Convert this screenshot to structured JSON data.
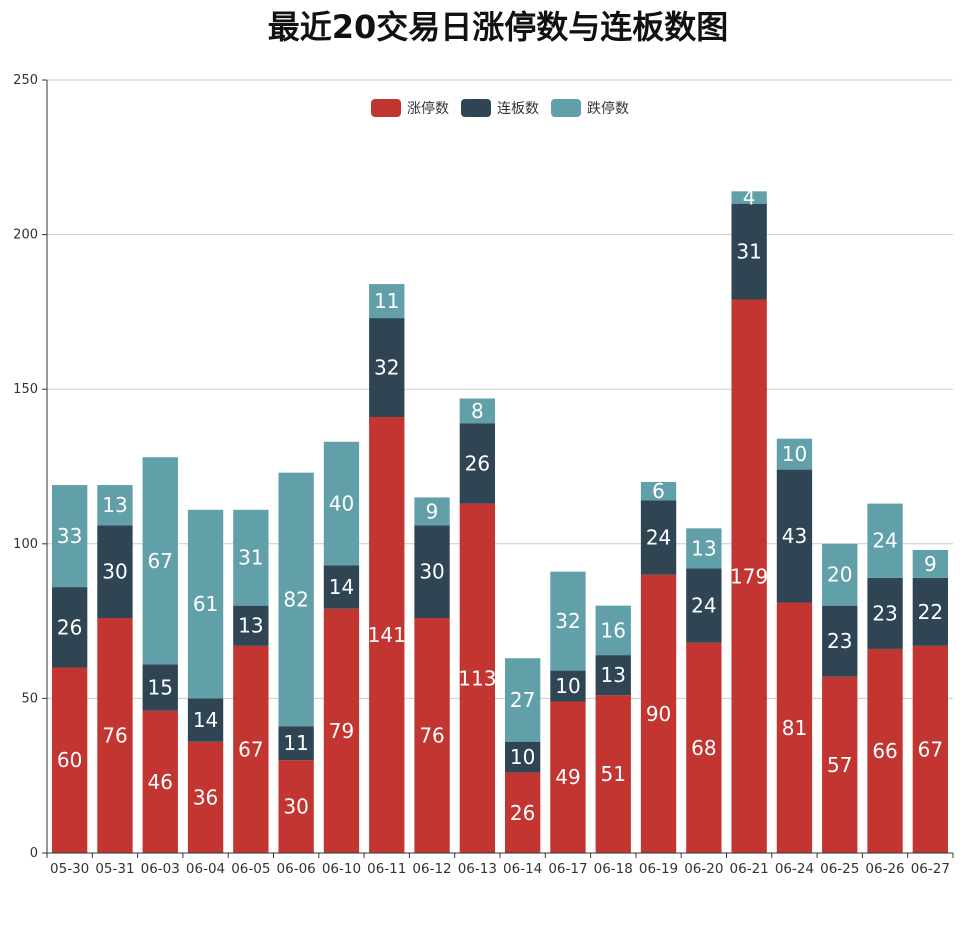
{
  "chart_data": {
    "type": "bar",
    "stacked": true,
    "title": "最近20交易日涨停数与连板数图",
    "xlabel": "",
    "ylabel": "",
    "ylim": [
      0,
      250
    ],
    "yticks": [
      0,
      50,
      100,
      150,
      200,
      250
    ],
    "legend_position": "top-center",
    "categories": [
      "05-30",
      "05-31",
      "06-03",
      "06-04",
      "06-05",
      "06-06",
      "06-10",
      "06-11",
      "06-12",
      "06-13",
      "06-14",
      "06-17",
      "06-18",
      "06-19",
      "06-20",
      "06-21",
      "06-24",
      "06-25",
      "06-26",
      "06-27"
    ],
    "series": [
      {
        "name": "涨停数",
        "color": "#c23531",
        "values": [
          60,
          76,
          46,
          36,
          67,
          30,
          79,
          141,
          76,
          113,
          26,
          49,
          51,
          90,
          68,
          179,
          81,
          57,
          66,
          67
        ]
      },
      {
        "name": "连板数",
        "color": "#2f4554",
        "values": [
          26,
          30,
          15,
          14,
          13,
          11,
          14,
          32,
          30,
          26,
          10,
          10,
          13,
          24,
          24,
          31,
          43,
          23,
          23,
          22
        ]
      },
      {
        "name": "跌停数",
        "color": "#61a0a8",
        "values": [
          33,
          13,
          67,
          61,
          31,
          82,
          40,
          11,
          9,
          8,
          27,
          32,
          16,
          6,
          13,
          4,
          10,
          20,
          24,
          9
        ]
      }
    ]
  }
}
